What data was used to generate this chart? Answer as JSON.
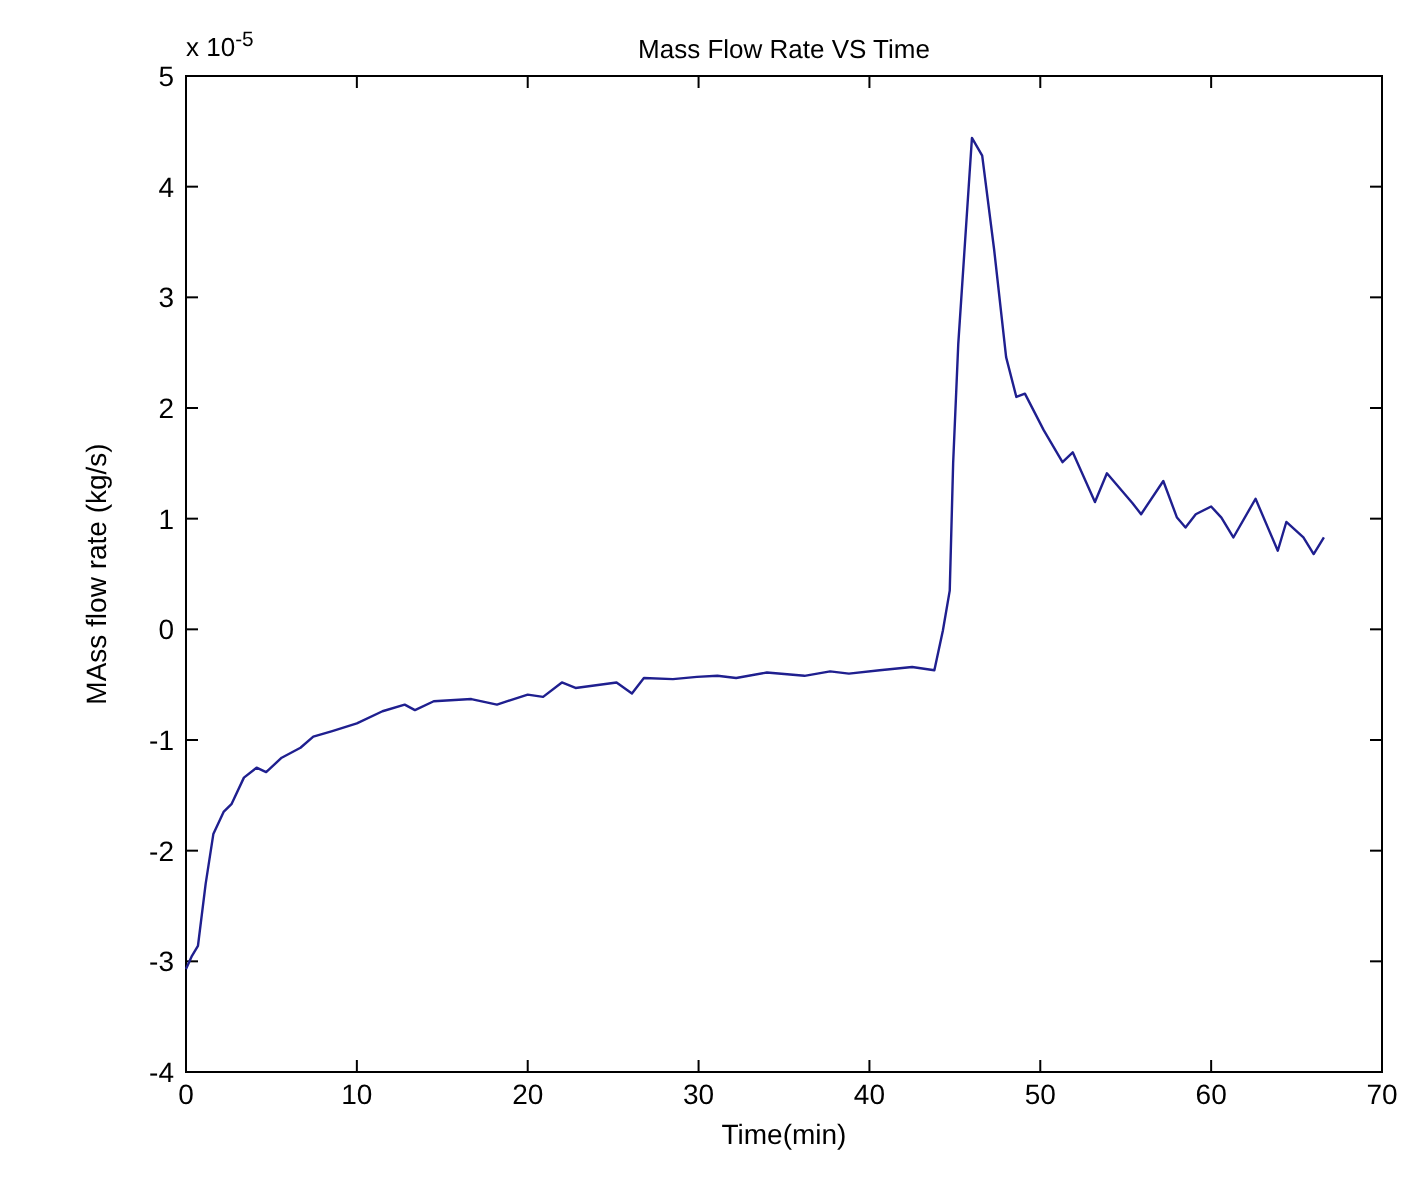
{
  "chart_data": {
    "type": "line",
    "title": "Mass Flow Rate VS Time",
    "xlabel": "Time(min)",
    "ylabel": "MAss flow rate (kg/s)",
    "annotations": [
      "x 10$^{-5}$"
    ],
    "xlim": [
      0,
      70
    ],
    "xticks": [
      0,
      10,
      20,
      30,
      40,
      50,
      60,
      70
    ],
    "ylim": [
      -4,
      5
    ],
    "yticks": [
      -4,
      -3,
      -2,
      -1,
      0,
      1,
      2,
      3,
      4,
      5
    ],
    "grid": false,
    "line_style": "solid",
    "marker": "none",
    "series": [
      {
        "color": "#1f1f8f",
        "x": [
          0,
          0.35,
          0.7,
          1.15,
          1.6,
          2.2,
          2.66,
          3.39,
          4.13,
          4.69,
          5.6,
          6.7,
          7.45,
          8.56,
          10.0,
          11.5,
          12.8,
          13.4,
          14.5,
          16.7,
          18.2,
          20.0,
          20.9,
          22.0,
          22.8,
          25.2,
          26.1,
          26.8,
          28.5,
          29.9,
          31.1,
          32.2,
          34.0,
          36.2,
          37.7,
          38.8,
          40.6,
          42.5,
          43.8,
          44.3,
          44.7,
          44.9,
          45.2,
          46.0,
          46.6,
          47.3,
          48.0,
          48.6,
          49.1,
          50.2,
          51.3,
          51.9,
          53.2,
          53.9,
          55.4,
          55.9,
          57.2,
          58.0,
          58.5,
          59.1,
          60.0,
          60.6,
          61.3,
          62.6,
          63.9,
          64.4,
          65.4,
          66.0,
          66.6
        ],
        "values": [
          -3.07,
          -2.95,
          -2.86,
          -2.3,
          -1.85,
          -1.65,
          -1.58,
          -1.34,
          -1.25,
          -1.29,
          -1.16,
          -1.07,
          -0.97,
          -0.92,
          -0.85,
          -0.74,
          -0.68,
          -0.73,
          -0.65,
          -0.63,
          -0.68,
          -0.59,
          -0.61,
          -0.48,
          -0.53,
          -0.48,
          -0.58,
          -0.44,
          -0.45,
          -0.43,
          -0.42,
          -0.44,
          -0.39,
          -0.42,
          -0.38,
          -0.4,
          -0.37,
          -0.34,
          -0.37,
          -0.01,
          0.35,
          1.5,
          2.58,
          4.44,
          4.28,
          3.43,
          2.46,
          2.1,
          2.13,
          1.8,
          1.51,
          1.6,
          1.15,
          1.41,
          1.14,
          1.04,
          1.34,
          1.01,
          0.92,
          1.04,
          1.11,
          1.01,
          0.83,
          1.18,
          0.71,
          0.97,
          0.83,
          0.68,
          0.83
        ]
      }
    ]
  }
}
